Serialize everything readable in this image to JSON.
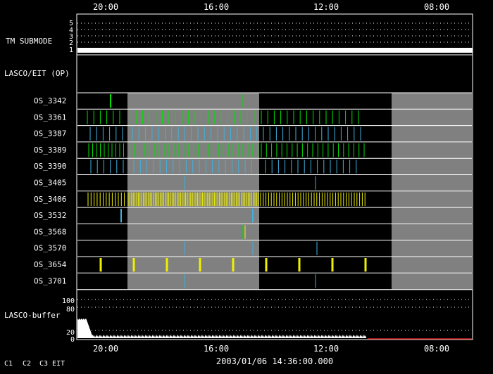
{
  "time_axis": {
    "top_ticks": [
      "20:00",
      "16:00",
      "12:00",
      "08:00"
    ],
    "bottom_ticks": [
      "20:00",
      "16:00",
      "12:00",
      "08:00"
    ],
    "footer_timestamp": "2003/01/06 14:36:00.000"
  },
  "tm_submode": {
    "label": "TM SUBMODE",
    "levels": [
      "5",
      "4",
      "3",
      "2",
      "1"
    ],
    "active_level": 1
  },
  "lasco_eit_label": "LASCO/EIT (OP)",
  "programs": [
    {
      "name": "OS_3342"
    },
    {
      "name": "OS_3361"
    },
    {
      "name": "OS_3387"
    },
    {
      "name": "OS_3389"
    },
    {
      "name": "OS_3390"
    },
    {
      "name": "OS_3405"
    },
    {
      "name": "OS_3406"
    },
    {
      "name": "OS_3532"
    },
    {
      "name": "OS_3568"
    },
    {
      "name": "OS_3570"
    },
    {
      "name": "OS_3654"
    },
    {
      "name": "OS_3701"
    }
  ],
  "buffer": {
    "label": "LASCO-buffer",
    "y_ticks": [
      "100",
      "80",
      "20",
      "0"
    ]
  },
  "legend": [
    {
      "text": "C1",
      "color": "#ff3030"
    },
    {
      "text": "C2",
      "color": "#30ff30"
    },
    {
      "text": "C3",
      "color": "#ffffff"
    },
    {
      "text": "EIT",
      "color": "#ffffff"
    }
  ],
  "colors": {
    "grid": "#ffffff",
    "shade": "#808080",
    "c2": "#00e000",
    "c3": "#40b0e0",
    "eit": "#f0f000"
  }
}
